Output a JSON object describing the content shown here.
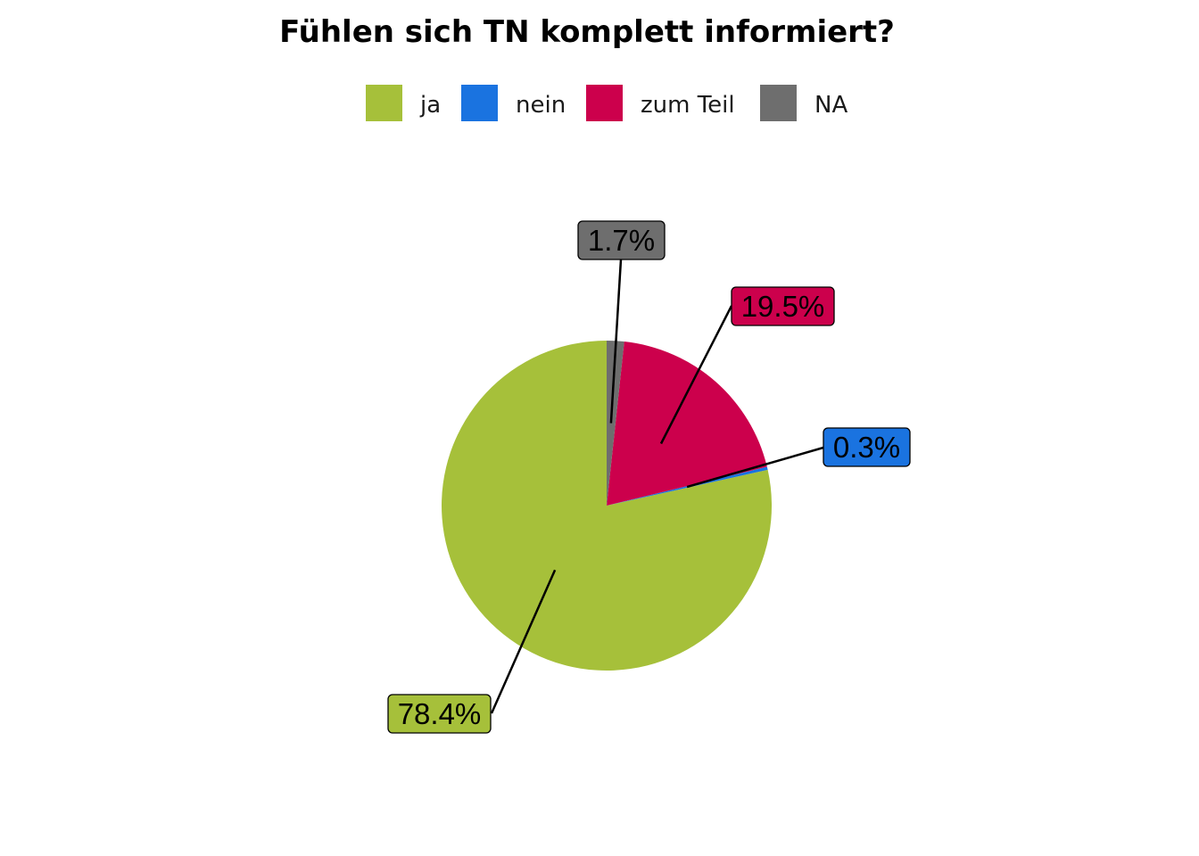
{
  "chart_data": {
    "type": "pie",
    "title": "Fühlen sich TN komplett informiert?",
    "legend_position": "top",
    "categories": [
      "ja",
      "nein",
      "zum Teil",
      "NA"
    ],
    "values": [
      78.4,
      0.3,
      19.5,
      1.7
    ],
    "labels": [
      "78.4%",
      "0.3%",
      "19.5%",
      "1.7%"
    ],
    "colors": [
      "#A6C03A",
      "#1A73E0",
      "#CC004C",
      "#6E6E6E"
    ],
    "direction": "counterclockwise from top"
  }
}
